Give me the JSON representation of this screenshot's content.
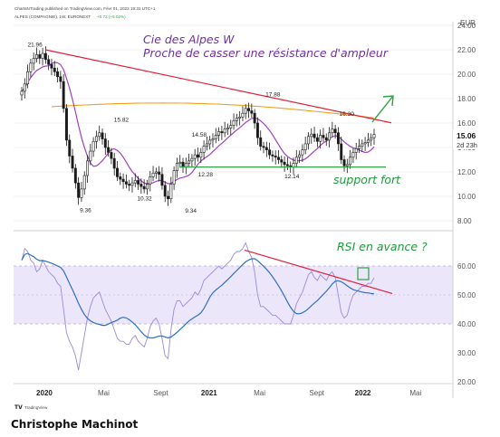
{
  "header": {
    "publish_line": "ChartsNTrading published on TradingView.com, Févr 01, 2022 19:31 UTC+1",
    "symbol_line": "ALPES (COMPAGNIE), 1W, EURONEXT",
    "change_text": "+0.72 (+5.02%)"
  },
  "annotations": {
    "title_line1": "Cie des Alpes W",
    "title_line2": "Proche de casser une résistance d'ampleur",
    "support": "support fort",
    "rsi": "RSI en avance ?"
  },
  "price_panel": {
    "currency": "EUR",
    "last_price": "15.06",
    "countdown": "2d 23h"
  },
  "footer": {
    "tradingview_logo": "TradingView",
    "author": "Christophe Machinot"
  },
  "colors": {
    "resistance_line": "#e0203a",
    "support_line": "#2ea043",
    "ma_purple": "#a040c0",
    "ma_orange": "#f0a020",
    "rsi_line": "#9a8ad8",
    "rsi_ma": "#2f6fc0",
    "rsi_band": "#ece6fa",
    "arrow_green": "#2ea043",
    "title_purple": "#7030a0",
    "candle_up": "#1a1a1a",
    "candle_down": "#1a1a1a"
  },
  "chart_data": [
    {
      "type": "candlestick",
      "title": "Cie des Alpes W",
      "ylabel": "EUR",
      "ylim": [
        8,
        24
      ],
      "y_ticks": [
        "24.00",
        "22.00",
        "20.00",
        "18.00",
        "16.00",
        "14.00",
        "12.00",
        "10.00",
        "8.00"
      ],
      "x_ticks": [
        "2020",
        "Mai",
        "Sept",
        "2021",
        "Mai",
        "Sept",
        "2022",
        "Mai"
      ],
      "labelled_levels": [
        {
          "label": "21.96",
          "value": 21.96
        },
        {
          "label": "9.36",
          "value": 9.36
        },
        {
          "label": "15.82",
          "value": 15.82
        },
        {
          "label": "10.32",
          "value": 10.32
        },
        {
          "label": "14.58",
          "value": 14.58
        },
        {
          "label": "9.34",
          "value": 9.34
        },
        {
          "label": "12.28",
          "value": 12.28
        },
        {
          "label": "17.88",
          "value": 17.88
        },
        {
          "label": "12.14",
          "value": 12.14
        },
        {
          "label": "16.30",
          "value": 16.3
        }
      ],
      "closes": [
        18.6,
        19.2,
        20.2,
        20.9,
        21.3,
        21.6,
        21.3,
        21.7,
        21.2,
        20.8,
        20.5,
        20.2,
        19.8,
        19.4,
        17.2,
        14.6,
        13.3,
        12.3,
        11.1,
        9.9,
        10.6,
        11.7,
        12.9,
        13.7,
        14.5,
        14.9,
        15.2,
        14.7,
        14.0,
        13.6,
        13.1,
        12.3,
        11.6,
        11.4,
        11.2,
        11.0,
        10.9,
        11.1,
        11.3,
        11.0,
        10.8,
        10.6,
        11.0,
        11.6,
        11.9,
        12.0,
        11.8,
        10.9,
        10.0,
        9.8,
        11.0,
        12.1,
        12.7,
        12.8,
        12.4,
        12.7,
        12.9,
        13.1,
        13.4,
        13.2,
        13.6,
        14.1,
        14.3,
        14.6,
        14.7,
        15.0,
        15.3,
        15.2,
        15.5,
        15.6,
        15.8,
        16.2,
        16.4,
        16.5,
        16.8,
        17.2,
        17.0,
        16.8,
        16.0,
        14.8,
        14.1,
        14.0,
        13.8,
        13.4,
        13.3,
        13.2,
        13.0,
        12.8,
        12.6,
        12.5,
        12.4,
        12.7,
        13.2,
        13.4,
        13.8,
        14.3,
        14.9,
        15.1,
        14.8,
        14.5,
        15.0,
        14.8,
        14.6,
        15.2,
        15.5,
        15.2,
        14.3,
        13.0,
        12.5,
        12.6,
        13.2,
        13.6,
        13.9,
        14.1,
        14.3,
        14.4,
        14.6,
        14.8,
        15.06
      ],
      "series": [
        {
          "name": "Resistance",
          "points": [
            [
              0,
              22.0
            ],
            [
              1,
              16.02
            ]
          ]
        },
        {
          "name": "Support",
          "points": [
            [
              0.61,
              12.4
            ],
            [
              1,
              12.4
            ]
          ]
        }
      ]
    },
    {
      "type": "line",
      "title": "RSI",
      "ylim": [
        20,
        70
      ],
      "y_ticks": [
        "60.00",
        "50.00",
        "40.00",
        "30.00",
        "20.00"
      ],
      "band": [
        40,
        60
      ],
      "midline": 50,
      "rsi": [
        62,
        66,
        65,
        62,
        61,
        58,
        59,
        62,
        60,
        58,
        57,
        56,
        54,
        53,
        45,
        37,
        34,
        32,
        29,
        24,
        30,
        36,
        42,
        46,
        49,
        50,
        51,
        48,
        45,
        43,
        41,
        38,
        35,
        34,
        34,
        33,
        33,
        35,
        36,
        34,
        33,
        32,
        35,
        39,
        41,
        42,
        40,
        35,
        29,
        28,
        38,
        45,
        48,
        48,
        46,
        47,
        48,
        49,
        51,
        50,
        52,
        55,
        56,
        57,
        58,
        59,
        60,
        59,
        60,
        61,
        62,
        64,
        65,
        65,
        66,
        68,
        65,
        63,
        58,
        50,
        46,
        46,
        45,
        44,
        43,
        43,
        42,
        41,
        40,
        40,
        40,
        43,
        47,
        49,
        51,
        54,
        57,
        58,
        56,
        55,
        57,
        56,
        55,
        57,
        58,
        56,
        50,
        44,
        42,
        43,
        47,
        50,
        51,
        52,
        53,
        53,
        54,
        54,
        56
      ],
      "series": [
        {
          "name": "RSI resistance",
          "points": [
            [
              0.76,
              65.5
            ],
            [
              1,
              50.5
            ]
          ]
        }
      ]
    }
  ]
}
